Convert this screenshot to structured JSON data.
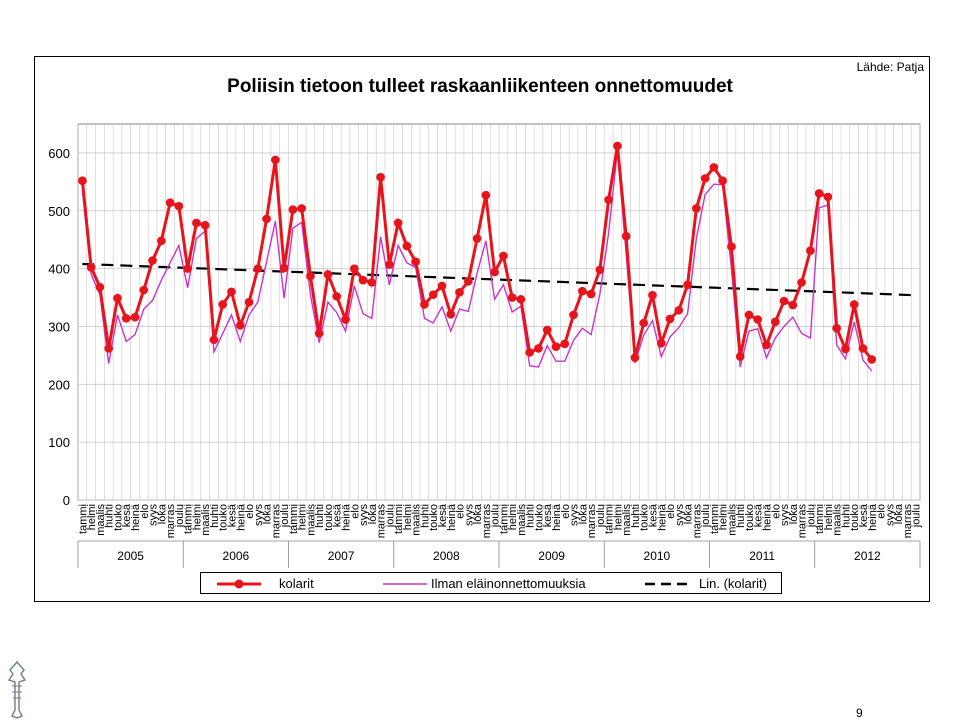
{
  "chart_data": {
    "type": "line",
    "title": "Poliisin tietoon tulleet raskaanliikenteen onnettomuudet",
    "source": "Lähde: Patja",
    "ylim": [
      0,
      650
    ],
    "yticks": [
      0,
      100,
      200,
      300,
      400,
      500,
      600
    ],
    "grid": true,
    "legend_position": "bottom",
    "month_labels": [
      "tammi",
      "helmi",
      "maalis",
      "huhti",
      "touko",
      "kesä",
      "heinä",
      "elo",
      "syys",
      "loka",
      "marras",
      "joulu"
    ],
    "years": [
      "2005",
      "2006",
      "2007",
      "2008",
      "2009",
      "2010",
      "2011",
      "2012"
    ],
    "series": [
      {
        "name": "kolarit",
        "color": "#e8141c",
        "values": [
          552,
          402,
          368,
          262,
          349,
          314,
          316,
          363,
          414,
          448,
          514,
          508,
          400,
          479,
          475,
          277,
          338,
          360,
          302,
          342,
          400,
          486,
          588,
          401,
          502,
          504,
          387,
          288,
          390,
          352,
          312,
          400,
          380,
          376,
          558,
          407,
          479,
          439,
          412,
          338,
          355,
          370,
          321,
          359,
          378,
          452,
          527,
          394,
          422,
          350,
          347,
          255,
          262,
          294,
          265,
          270,
          320,
          361,
          356,
          398,
          519,
          612,
          456,
          246,
          306,
          354,
          271,
          313,
          328,
          372,
          504,
          556,
          575,
          552,
          438,
          248,
          320,
          312,
          268,
          308,
          344,
          337,
          376,
          431,
          530,
          524,
          297,
          261,
          338,
          262,
          243
        ]
      },
      {
        "name": "Ilman eläinonnettomuuksia",
        "color": "#cc33cc",
        "values": [
          535,
          390,
          355,
          236,
          320,
          274,
          286,
          330,
          345,
          380,
          410,
          440,
          367,
          452,
          465,
          256,
          288,
          320,
          274,
          320,
          342,
          412,
          482,
          349,
          470,
          480,
          355,
          272,
          342,
          324,
          292,
          370,
          322,
          314,
          455,
          372,
          440,
          410,
          402,
          314,
          306,
          334,
          292,
          330,
          326,
          392,
          448,
          347,
          372,
          325,
          335,
          232,
          230,
          267,
          240,
          240,
          276,
          297,
          286,
          356,
          462,
          604,
          425,
          237,
          285,
          310,
          248,
          282,
          298,
          322,
          452,
          528,
          546,
          545,
          400,
          230,
          292,
          296,
          246,
          280,
          300,
          316,
          288,
          280,
          505,
          510,
          268,
          244,
          308,
          242,
          223
        ]
      },
      {
        "name": "Lin. (kolarit)",
        "color": "#000000",
        "dashed": true,
        "start": 408,
        "end": 354
      }
    ]
  },
  "page_number": "9"
}
